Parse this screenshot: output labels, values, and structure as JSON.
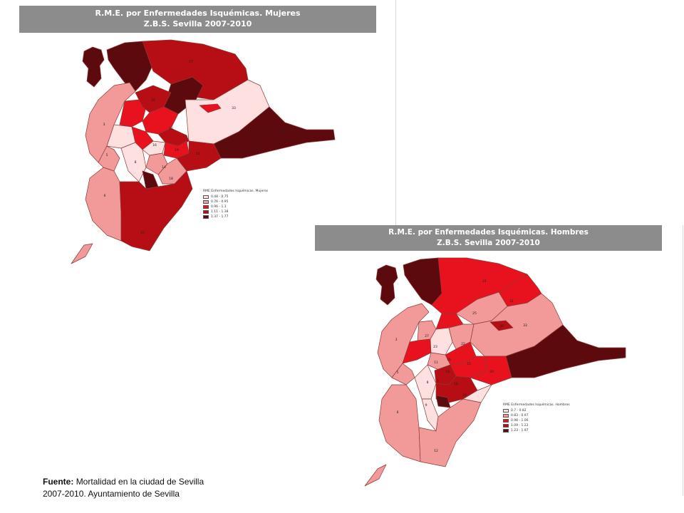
{
  "maps": [
    {
      "title": [
        "R.M.E. por Enfermedades Isquémicas. Mujeres",
        "Z.B.S. Sevilla 2007-2010"
      ],
      "legend": {
        "title": "RME Enfermedades Isquémicas. Mujeres",
        "items": [
          {
            "label": "0.48 - 0.75",
            "color": "#fde0df"
          },
          {
            "label": "0.76 - 0.95",
            "color": "#f29a9a"
          },
          {
            "label": "0.96 - 1.1",
            "color": "#e8121e"
          },
          {
            "label": "1.11 - 1.38",
            "color": "#b60e14"
          },
          {
            "label": "1.37 - 1.77",
            "color": "#5c0a0e"
          }
        ]
      },
      "zone_labels": [
        "3",
        "5",
        "6",
        "8",
        "12",
        "14",
        "16",
        "18",
        "19",
        "21",
        "22",
        "26",
        "27",
        "31",
        "33"
      ]
    },
    {
      "title": [
        "R.M.E. por Enfermedades Isquémicas. Hombres",
        "Z.B.S. Sevilla 2007-2010"
      ],
      "legend": {
        "title": "RME Enfermedades Isquémicas. Hombres",
        "items": [
          {
            "label": "0.7 - 0.82",
            "color": "#fde0df"
          },
          {
            "label": "0.83 - 0.97",
            "color": "#f29a9a"
          },
          {
            "label": "0.98 - 1.06",
            "color": "#e8121e"
          },
          {
            "label": "1.09 - 1.22",
            "color": "#b60e14"
          },
          {
            "label": "1.23 - 1.97",
            "color": "#5c0a0e"
          }
        ]
      },
      "zone_labels": [
        "3",
        "5",
        "6",
        "7",
        "8",
        "9",
        "10",
        "11",
        "12",
        "15",
        "16",
        "18",
        "19",
        "20",
        "21",
        "22",
        "23",
        "25",
        "27",
        "30",
        "31",
        "33"
      ]
    }
  ],
  "source": {
    "label": "Fuente:",
    "text_line1": "Mortalidad en la ciudad de Sevilla",
    "text_line2": "2007-2010.  Ayuntamiento de Sevilla"
  }
}
